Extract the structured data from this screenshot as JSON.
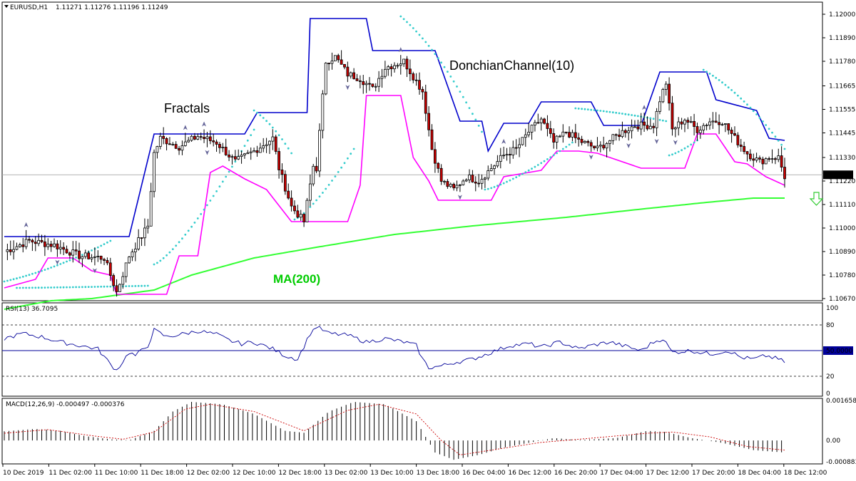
{
  "header": {
    "symbol": "EURUSD,H1",
    "ohlc": "1.11271 1.11276 1.11196 1.11249"
  },
  "annotations": {
    "fractals": "Fractals",
    "donchian": "DonchianChannel(10)",
    "ma": "MA(200)"
  },
  "colors": {
    "bull_candle": "#ffffff",
    "bear_candle": "#cc0000",
    "donchian_upper": "#0000cc",
    "donchian_lower": "#ff00ff",
    "ma": "#33ff33",
    "parabolic_sar": "#33cccc",
    "rsi": "#000099",
    "macd_signal": "#cc0000",
    "sell_arrow": "#33cc33",
    "ma_label": "#00cc00"
  },
  "chart_data": [
    {
      "type": "candlestick",
      "panel": "price",
      "title": "",
      "ylim": [
        1.1067,
        1.12
      ],
      "y_ticks": [
        "1.12000",
        "1.11890",
        "1.11780",
        "1.11665",
        "1.11555",
        "1.11445",
        "1.11330",
        "1.11220",
        "1.11110",
        "1.11000",
        "1.10890",
        "1.10780",
        "1.10670"
      ],
      "current_price": "1.11249",
      "x_ticks": [
        "10 Dec 2019",
        "11 Dec 02:00",
        "11 Dec 10:00",
        "11 Dec 18:00",
        "12 Dec 02:00",
        "12 Dec 10:00",
        "12 Dec 18:00",
        "13 Dec 02:00",
        "13 Dec 10:00",
        "13 Dec 18:00",
        "16 Dec 04:00",
        "16 Dec 12:00",
        "16 Dec 20:00",
        "17 Dec 04:00",
        "17 Dec 12:00",
        "17 Dec 20:00",
        "18 Dec 04:00",
        "18 Dec 12:00"
      ],
      "indicators": [
        "Fractals",
        "DonchianChannel(10)",
        "MA(200)",
        "Parabolic SAR"
      ],
      "candles_close_profile": [
        [
          0,
          1.1089
        ],
        [
          8,
          1.1094
        ],
        [
          16,
          1.1092
        ],
        [
          24,
          1.1087
        ],
        [
          32,
          1.1086
        ],
        [
          36,
          1.107
        ],
        [
          40,
          1.1087
        ],
        [
          46,
          1.1101
        ],
        [
          48,
          1.1135
        ],
        [
          50,
          1.1142
        ],
        [
          56,
          1.1138
        ],
        [
          62,
          1.1143
        ],
        [
          68,
          1.114
        ],
        [
          74,
          1.1131
        ],
        [
          80,
          1.1136
        ],
        [
          86,
          1.1142
        ],
        [
          88,
          1.1128
        ],
        [
          92,
          1.111
        ],
        [
          96,
          1.1103
        ],
        [
          99,
          1.1129
        ],
        [
          100,
          1.1128
        ],
        [
          103,
          1.1178
        ],
        [
          106,
          1.118
        ],
        [
          110,
          1.1172
        ],
        [
          114,
          1.117
        ],
        [
          118,
          1.1165
        ],
        [
          122,
          1.1175
        ],
        [
          128,
          1.1178
        ],
        [
          134,
          1.1164
        ],
        [
          137,
          1.1137
        ],
        [
          140,
          1.1122
        ],
        [
          144,
          1.1118
        ],
        [
          148,
          1.1124
        ],
        [
          152,
          1.1122
        ],
        [
          160,
          1.1134
        ],
        [
          164,
          1.1137
        ],
        [
          168,
          1.1145
        ],
        [
          172,
          1.1151
        ],
        [
          176,
          1.114
        ],
        [
          180,
          1.1145
        ],
        [
          184,
          1.1141
        ],
        [
          190,
          1.1137
        ],
        [
          194,
          1.1141
        ],
        [
          198,
          1.1145
        ],
        [
          202,
          1.1148
        ],
        [
          208,
          1.1148
        ],
        [
          210,
          1.116
        ],
        [
          212,
          1.1168
        ],
        [
          214,
          1.1146
        ],
        [
          218,
          1.1151
        ],
        [
          222,
          1.1146
        ],
        [
          226,
          1.115
        ],
        [
          230,
          1.115
        ],
        [
          234,
          1.1142
        ],
        [
          238,
          1.1135
        ],
        [
          242,
          1.1131
        ],
        [
          245,
          1.1133
        ],
        [
          248,
          1.1133
        ],
        [
          250,
          1.1124
        ]
      ],
      "donchian_upper_profile": [
        [
          0,
          1.1096
        ],
        [
          40,
          1.1096
        ],
        [
          48,
          1.1144
        ],
        [
          77,
          1.1144
        ],
        [
          81,
          1.1154
        ],
        [
          97,
          1.1154
        ],
        [
          98,
          1.1198
        ],
        [
          116,
          1.1198
        ],
        [
          118,
          1.1183
        ],
        [
          138,
          1.1183
        ],
        [
          146,
          1.115
        ],
        [
          153,
          1.115
        ],
        [
          155,
          1.1136
        ],
        [
          160,
          1.1149
        ],
        [
          168,
          1.1149
        ],
        [
          172,
          1.1159
        ],
        [
          188,
          1.1159
        ],
        [
          192,
          1.1148
        ],
        [
          204,
          1.1148
        ],
        [
          210,
          1.1173
        ],
        [
          225,
          1.1173
        ],
        [
          228,
          1.116
        ],
        [
          241,
          1.1155
        ],
        [
          245,
          1.1142
        ],
        [
          250,
          1.1141
        ]
      ],
      "donchian_lower_profile": [
        [
          0,
          1.1072
        ],
        [
          10,
          1.1076
        ],
        [
          14,
          1.1086
        ],
        [
          22,
          1.1086
        ],
        [
          28,
          1.108
        ],
        [
          34,
          1.1078
        ],
        [
          36,
          1.1069
        ],
        [
          52,
          1.1069
        ],
        [
          56,
          1.1087
        ],
        [
          62,
          1.1087
        ],
        [
          66,
          1.1126
        ],
        [
          70,
          1.1129
        ],
        [
          77,
          1.1123
        ],
        [
          84,
          1.1118
        ],
        [
          92,
          1.1103
        ],
        [
          110,
          1.1103
        ],
        [
          114,
          1.112
        ],
        [
          116,
          1.1162
        ],
        [
          127,
          1.1162
        ],
        [
          131,
          1.1133
        ],
        [
          136,
          1.1122
        ],
        [
          139,
          1.1113
        ],
        [
          156,
          1.1113
        ],
        [
          160,
          1.1124
        ],
        [
          172,
          1.1127
        ],
        [
          177,
          1.1136
        ],
        [
          184,
          1.1136
        ],
        [
          190,
          1.1135
        ],
        [
          204,
          1.1128
        ],
        [
          218,
          1.1128
        ],
        [
          222,
          1.1144
        ],
        [
          228,
          1.1144
        ],
        [
          234,
          1.1131
        ],
        [
          238,
          1.113
        ],
        [
          244,
          1.1124
        ],
        [
          250,
          1.112
        ]
      ],
      "ma200_profile": [
        [
          0,
          1.1062
        ],
        [
          15,
          1.1066
        ],
        [
          28,
          1.1067
        ],
        [
          48,
          1.1071
        ],
        [
          60,
          1.1078
        ],
        [
          80,
          1.1086
        ],
        [
          100,
          1.1091
        ],
        [
          125,
          1.1097
        ],
        [
          150,
          1.1101
        ],
        [
          180,
          1.1105
        ],
        [
          205,
          1.1109
        ],
        [
          225,
          1.1112
        ],
        [
          240,
          1.1114
        ],
        [
          250,
          1.1114
        ]
      ],
      "parabolic_sar": [
        {
          "from": [
            0,
            1.1075
          ],
          "to": [
            34,
            1.1094
          ],
          "side": "above",
          "step": "down"
        },
        {
          "from": [
            4,
            1.1072
          ],
          "to": [
            46,
            1.1073
          ],
          "side": "below"
        },
        {
          "from": [
            48,
            1.1083
          ],
          "to": [
            80,
            1.1146
          ],
          "side": "below"
        },
        {
          "from": [
            80,
            1.1155
          ],
          "to": [
            92,
            1.1135
          ],
          "side": "above"
        },
        {
          "from": [
            93,
            1.1104
          ],
          "to": [
            112,
            1.1137
          ],
          "side": "below"
        },
        {
          "from": [
            127,
            1.1199
          ],
          "to": [
            153,
            1.1145
          ],
          "side": "above"
        },
        {
          "from": [
            154,
            1.1118
          ],
          "to": [
            182,
            1.114
          ],
          "side": "below"
        },
        {
          "from": [
            183,
            1.1156
          ],
          "to": [
            212,
            1.115
          ],
          "side": "above"
        },
        {
          "from": [
            213,
            1.1134
          ],
          "to": [
            222,
            1.1141
          ],
          "side": "below"
        },
        {
          "from": [
            224,
            1.1174
          ],
          "to": [
            250,
            1.1137
          ],
          "side": "above"
        }
      ]
    },
    {
      "type": "line",
      "panel": "rsi",
      "title": "RSI(13) 36.7095",
      "ylim": [
        0,
        100
      ],
      "y_ticks": [
        "100",
        "80",
        "50.0000",
        "20",
        "0"
      ],
      "levels": [
        80,
        50,
        20
      ],
      "values": [
        [
          0,
          64
        ],
        [
          6,
          70
        ],
        [
          12,
          66
        ],
        [
          18,
          60
        ],
        [
          24,
          56
        ],
        [
          30,
          52
        ],
        [
          34,
          34
        ],
        [
          36,
          27
        ],
        [
          40,
          48
        ],
        [
          42,
          44
        ],
        [
          46,
          56
        ],
        [
          48,
          74
        ],
        [
          52,
          66
        ],
        [
          58,
          70
        ],
        [
          62,
          73
        ],
        [
          68,
          69
        ],
        [
          72,
          62
        ],
        [
          76,
          58
        ],
        [
          80,
          60
        ],
        [
          86,
          52
        ],
        [
          90,
          44
        ],
        [
          94,
          40
        ],
        [
          98,
          70
        ],
        [
          100,
          78
        ],
        [
          104,
          70
        ],
        [
          110,
          68
        ],
        [
          116,
          60
        ],
        [
          122,
          64
        ],
        [
          128,
          60
        ],
        [
          132,
          56
        ],
        [
          134,
          40
        ],
        [
          136,
          30
        ],
        [
          140,
          32
        ],
        [
          144,
          36
        ],
        [
          150,
          40
        ],
        [
          156,
          48
        ],
        [
          162,
          56
        ],
        [
          168,
          58
        ],
        [
          172,
          54
        ],
        [
          178,
          60
        ],
        [
          184,
          52
        ],
        [
          188,
          56
        ],
        [
          194,
          60
        ],
        [
          198,
          56
        ],
        [
          204,
          50
        ],
        [
          208,
          60
        ],
        [
          211,
          64
        ],
        [
          214,
          48
        ],
        [
          220,
          50
        ],
        [
          226,
          46
        ],
        [
          232,
          50
        ],
        [
          236,
          42
        ],
        [
          240,
          40
        ],
        [
          244,
          44
        ],
        [
          248,
          40
        ],
        [
          250,
          36.7
        ]
      ]
    },
    {
      "type": "bar",
      "panel": "macd",
      "title": "MACD(12,26,9) -0.000497 -0.000376",
      "ylim": [
        -0.000883,
        0.001658
      ],
      "y_ticks": [
        "0.001658",
        "0.00",
        "-0.000883"
      ],
      "histogram_profile": [
        [
          0,
          0.00038
        ],
        [
          10,
          0.00048
        ],
        [
          18,
          0.0004
        ],
        [
          26,
          0.00018
        ],
        [
          34,
          5e-05
        ],
        [
          40,
          1e-05
        ],
        [
          48,
          0.0004
        ],
        [
          54,
          0.0012
        ],
        [
          60,
          0.0016
        ],
        [
          70,
          0.0015
        ],
        [
          80,
          0.0011
        ],
        [
          90,
          0.0004
        ],
        [
          96,
          0.00032
        ],
        [
          104,
          0.0012
        ],
        [
          112,
          0.0016
        ],
        [
          122,
          0.0015
        ],
        [
          132,
          0.0008
        ],
        [
          138,
          -0.0005
        ],
        [
          144,
          -0.0008
        ],
        [
          152,
          -0.0006
        ],
        [
          160,
          -0.0003
        ],
        [
          168,
          -0.0001
        ],
        [
          176,
          0.0001
        ],
        [
          184,
          2e-05
        ],
        [
          196,
          0.0001
        ],
        [
          206,
          0.0004
        ],
        [
          212,
          0.00035
        ],
        [
          220,
          0.0001
        ],
        [
          230,
          -0.0001
        ],
        [
          240,
          -0.0004
        ],
        [
          250,
          -0.0005
        ]
      ],
      "signal_profile": [
        [
          0,
          0.0003
        ],
        [
          14,
          0.00045
        ],
        [
          28,
          0.0002
        ],
        [
          38,
          5e-05
        ],
        [
          48,
          0.00035
        ],
        [
          58,
          0.0013
        ],
        [
          66,
          0.0015
        ],
        [
          80,
          0.0012
        ],
        [
          96,
          0.0004
        ],
        [
          110,
          0.00125
        ],
        [
          120,
          0.0015
        ],
        [
          132,
          0.0011
        ],
        [
          140,
          0.0
        ],
        [
          146,
          -0.0006
        ],
        [
          156,
          -0.0004
        ],
        [
          172,
          -8e-05
        ],
        [
          184,
          5e-05
        ],
        [
          206,
          0.0003
        ],
        [
          214,
          0.00035
        ],
        [
          226,
          0.00015
        ],
        [
          238,
          -0.00025
        ],
        [
          250,
          -0.0004
        ]
      ]
    }
  ]
}
